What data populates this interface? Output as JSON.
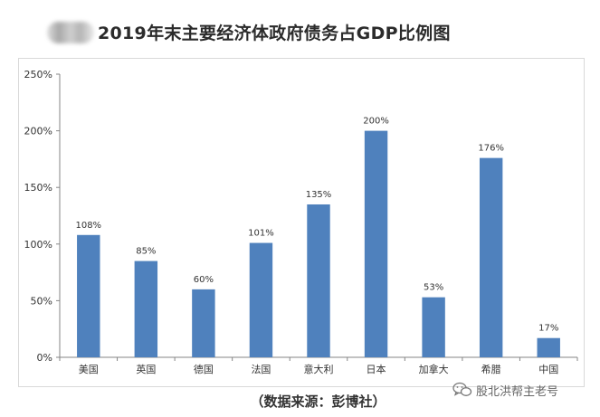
{
  "header": {
    "title": "2019年末主要经济体政府债务占GDP比例图"
  },
  "chart_data": {
    "type": "bar",
    "title": "2019年末主要经济体政府债务占GDP比例图",
    "categories": [
      "美国",
      "英国",
      "德国",
      "法国",
      "意大利",
      "日本",
      "加拿大",
      "希腊",
      "中国"
    ],
    "values": [
      108,
      85,
      60,
      101,
      135,
      200,
      53,
      176,
      17
    ],
    "value_labels": [
      "108%",
      "85%",
      "60%",
      "101%",
      "135%",
      "200%",
      "53%",
      "176%",
      "17%"
    ],
    "y_ticks": [
      "0%",
      "50%",
      "100%",
      "150%",
      "200%",
      "250%"
    ],
    "ylim": [
      0,
      250
    ],
    "xlabel": "",
    "ylabel": "",
    "bar_color": "#4f81bd",
    "grid": false
  },
  "footer": {
    "source": "（数据来源：彭博社）",
    "watermark": "股北洪帮主老号",
    "watermark_icon": "wechat-icon"
  }
}
